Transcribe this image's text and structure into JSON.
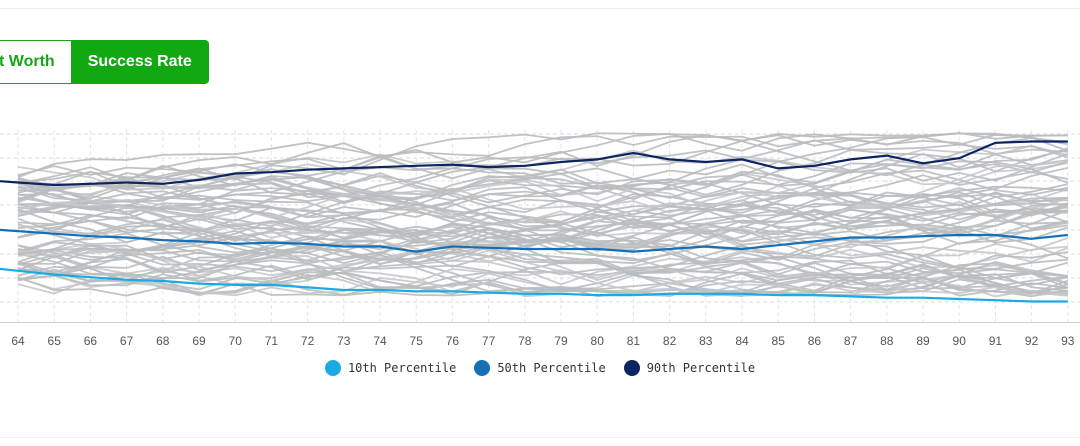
{
  "toggle": {
    "net_worth_label": "t Worth",
    "success_rate_label": "Success Rate",
    "selected": "Success Rate"
  },
  "colors": {
    "accent_green": "#12a812",
    "sim_line": "#b9bcc0",
    "p10": "#1aabe3",
    "p50": "#1570b8",
    "p90": "#0c2461"
  },
  "chart_data": {
    "type": "line",
    "x": [
      64,
      65,
      66,
      67,
      68,
      69,
      70,
      71,
      72,
      73,
      74,
      75,
      76,
      77,
      78,
      79,
      80,
      81,
      82,
      83,
      84,
      85,
      86,
      87,
      88,
      89,
      90,
      91,
      92,
      93
    ],
    "xlabel": "",
    "ylabel": "",
    "grid": true,
    "legend_position": "bottom",
    "series": [
      {
        "name": "10th Percentile",
        "color": "#1aabe3",
        "values": [
          0.8,
          0.77,
          0.75,
          0.73,
          0.72,
          0.7,
          0.69,
          0.69,
          0.67,
          0.65,
          0.65,
          0.64,
          0.64,
          0.63,
          0.62,
          0.62,
          0.61,
          0.61,
          0.62,
          0.62,
          0.62,
          0.61,
          0.61,
          0.6,
          0.59,
          0.59,
          0.58,
          0.57,
          0.56,
          0.56
        ]
      },
      {
        "name": "50th Percentile",
        "color": "#1570b8",
        "values": [
          1.11,
          1.09,
          1.07,
          1.06,
          1.04,
          1.03,
          1.01,
          1.02,
          1.01,
          0.99,
          0.99,
          0.95,
          0.99,
          0.98,
          0.97,
          0.97,
          0.97,
          0.95,
          0.97,
          0.99,
          0.97,
          1.0,
          1.03,
          1.06,
          1.06,
          1.07,
          1.08,
          1.08,
          1.05,
          1.08
        ]
      },
      {
        "name": "90th Percentile",
        "color": "#0c2461",
        "values": [
          1.49,
          1.47,
          1.48,
          1.49,
          1.48,
          1.51,
          1.56,
          1.57,
          1.59,
          1.6,
          1.61,
          1.62,
          1.63,
          1.61,
          1.62,
          1.65,
          1.67,
          1.72,
          1.67,
          1.65,
          1.67,
          1.6,
          1.62,
          1.67,
          1.7,
          1.64,
          1.68,
          1.8,
          1.81,
          1.81
        ]
      }
    ]
  },
  "simulation_seeds": 70
}
